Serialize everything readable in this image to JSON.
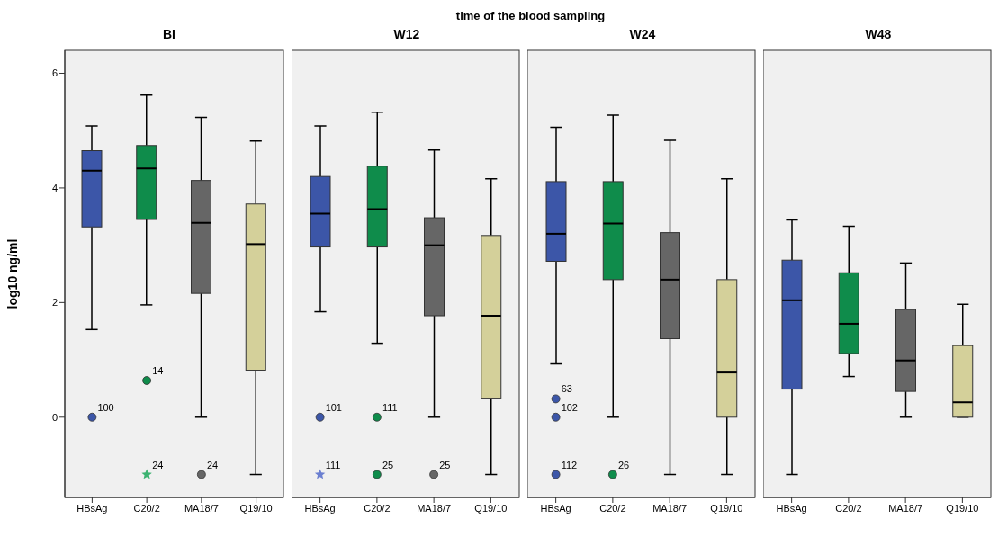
{
  "chart_data": [
    {
      "type": "box",
      "title": "BI",
      "ylabel": "log10 ng/ml",
      "categories": [
        "HBsAg",
        "C20/2",
        "MA18/7",
        "Q19/10"
      ],
      "colors": [
        "#3c56a8",
        "#0f8c4b",
        "#666666",
        "#d4d09a"
      ],
      "boxes": [
        {
          "low": 1.53,
          "q1": 3.32,
          "median": 4.3,
          "q3": 4.65,
          "high": 5.08
        },
        {
          "low": 1.96,
          "q1": 3.45,
          "median": 4.34,
          "q3": 4.74,
          "high": 5.62
        },
        {
          "low": 0,
          "q1": 2.16,
          "median": 3.39,
          "q3": 4.13,
          "high": 5.23
        },
        {
          "low": -1,
          "q1": 0.82,
          "median": 3.02,
          "q3": 3.72,
          "high": 4.82
        }
      ],
      "series": [
        {
          "type": "scatter",
          "x": [
            "HBsAg"
          ],
          "values": [
            0
          ],
          "marker": "circle",
          "color": "#3c56a8"
        },
        {
          "type": "scatter",
          "x": [
            "C20/2"
          ],
          "values": [
            0.64
          ],
          "marker": "circle",
          "color": "#0f8c4b"
        },
        {
          "type": "scatter",
          "x": [
            "C20/2"
          ],
          "values": [
            -1
          ],
          "marker": "star",
          "color": "#3cb371"
        },
        {
          "type": "scatter",
          "x": [
            "MA18/7"
          ],
          "values": [
            -1
          ],
          "marker": "circle",
          "color": "#666666"
        }
      ],
      "ylim": [
        -1.4,
        6.4
      ],
      "yticks": [
        0,
        2,
        4,
        6
      ],
      "grid": false,
      "legend": false,
      "annotations": [
        "time of the blood sampling",
        {
          "text": "100",
          "x": "HBsAg",
          "y": 0
        },
        {
          "text": "14",
          "x": "C20/2",
          "y": 0.64
        },
        {
          "text": "24",
          "x": "C20/2",
          "y": -1
        },
        {
          "text": "24",
          "x": "MA18/7",
          "y": -1
        }
      ]
    },
    {
      "type": "box",
      "title": "W12",
      "categories": [
        "HBsAg",
        "C20/2",
        "MA18/7",
        "Q19/10"
      ],
      "colors": [
        "#3c56a8",
        "#0f8c4b",
        "#666666",
        "#d4d09a"
      ],
      "boxes": [
        {
          "low": 1.84,
          "q1": 2.97,
          "median": 3.55,
          "q3": 4.2,
          "high": 5.08
        },
        {
          "low": 1.29,
          "q1": 2.97,
          "median": 3.63,
          "q3": 4.38,
          "high": 5.32
        },
        {
          "low": 0,
          "q1": 1.77,
          "median": 3,
          "q3": 3.48,
          "high": 4.66
        },
        {
          "low": -1,
          "q1": 0.32,
          "median": 1.77,
          "q3": 3.17,
          "high": 4.16
        }
      ],
      "series": [
        {
          "type": "scatter",
          "x": [
            "HBsAg"
          ],
          "values": [
            0
          ],
          "marker": "circle",
          "color": "#3c56a8"
        },
        {
          "type": "scatter",
          "x": [
            "HBsAg"
          ],
          "values": [
            -1
          ],
          "marker": "star",
          "color": "#6b7fd0"
        },
        {
          "type": "scatter",
          "x": [
            "C20/2",
            "C20/2"
          ],
          "values": [
            0,
            -1
          ],
          "marker": "circle",
          "color": "#0f8c4b"
        },
        {
          "type": "scatter",
          "x": [
            "MA18/7"
          ],
          "values": [
            -1
          ],
          "marker": "circle",
          "color": "#666666"
        }
      ],
      "ylim": [
        -1.4,
        6.4
      ],
      "yticks": [
        0,
        2,
        4,
        6
      ],
      "tick_labels": "x",
      "grid": false,
      "legend": false,
      "annotations": [
        {
          "text": "101",
          "x": "HBsAg",
          "y": 0
        },
        {
          "text": "111",
          "x": "HBsAg",
          "y": -1
        },
        {
          "text": "111",
          "x": "C20/2",
          "y": 0
        },
        {
          "text": "25",
          "x": "C20/2",
          "y": -1
        },
        {
          "text": "25",
          "x": "MA18/7",
          "y": -1
        }
      ]
    },
    {
      "type": "box",
      "title": "W24",
      "categories": [
        "HBsAg",
        "C20/2",
        "MA18/7",
        "Q19/10"
      ],
      "colors": [
        "#3c56a8",
        "#0f8c4b",
        "#666666",
        "#d4d09a"
      ],
      "boxes": [
        {
          "low": 0.93,
          "q1": 2.72,
          "median": 3.2,
          "q3": 4.11,
          "high": 5.06
        },
        {
          "low": 0,
          "q1": 2.4,
          "median": 3.38,
          "q3": 4.11,
          "high": 5.27
        },
        {
          "low": -1,
          "q1": 1.37,
          "median": 2.4,
          "q3": 3.22,
          "high": 4.83
        },
        {
          "low": -1,
          "q1": 0,
          "median": 0.78,
          "q3": 2.4,
          "high": 4.16
        }
      ],
      "series": [
        {
          "type": "scatter",
          "x": [
            "HBsAg",
            "HBsAg",
            "HBsAg"
          ],
          "values": [
            0.32,
            0,
            -1
          ],
          "marker": "circle",
          "color": "#3c56a8"
        },
        {
          "type": "scatter",
          "x": [
            "C20/2"
          ],
          "values": [
            -1
          ],
          "marker": "circle",
          "color": "#0f8c4b"
        }
      ],
      "ylim": [
        -1.4,
        6.4
      ],
      "yticks": [
        0,
        2,
        4,
        6
      ],
      "tick_labels": "x",
      "grid": false,
      "legend": false,
      "annotations": [
        {
          "text": "63",
          "x": "HBsAg",
          "y": 0.32
        },
        {
          "text": "102",
          "x": "HBsAg",
          "y": 0
        },
        {
          "text": "112",
          "x": "HBsAg",
          "y": -1
        },
        {
          "text": "26",
          "x": "C20/2",
          "y": -1
        }
      ]
    },
    {
      "type": "box",
      "title": "W48",
      "categories": [
        "HBsAg",
        "C20/2",
        "MA18/7",
        "Q19/10"
      ],
      "colors": [
        "#3c56a8",
        "#0f8c4b",
        "#666666",
        "#d4d09a"
      ],
      "boxes": [
        {
          "low": -1,
          "q1": 0.49,
          "median": 2.04,
          "q3": 2.74,
          "high": 3.44
        },
        {
          "low": 0.71,
          "q1": 1.11,
          "median": 1.63,
          "q3": 2.52,
          "high": 3.33
        },
        {
          "low": 0,
          "q1": 0.45,
          "median": 0.99,
          "q3": 1.88,
          "high": 2.69
        },
        {
          "low": 0,
          "q1": 0,
          "median": 0.26,
          "q3": 1.25,
          "high": 1.97
        }
      ],
      "ylim": [
        -1.4,
        6.4
      ],
      "yticks": [
        0,
        2,
        4,
        6
      ],
      "tick_labels": "x",
      "grid": false,
      "legend": false
    }
  ]
}
